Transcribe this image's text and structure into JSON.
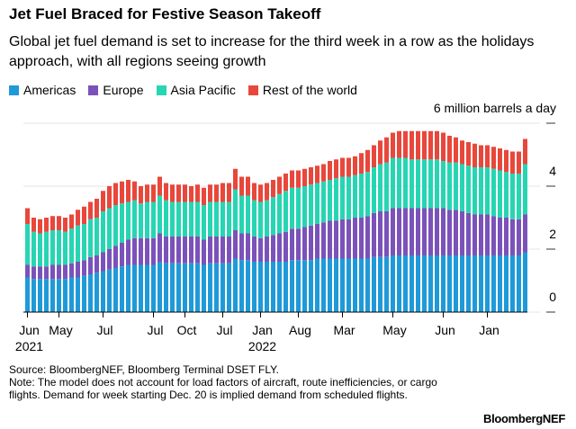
{
  "chart_data": {
    "type": "stacked_bar",
    "title": "Jet Fuel Braced for Festive Season Takeoff",
    "subtitle": "Global jet fuel demand is set to increase for the third week in a row as the holidays approach, with all regions seeing growth",
    "source": "Source: BloombergNEF, Bloomberg Terminal DSET FLY.",
    "note": "Note: The model does not account for load factors of aircraft, route inefficiencies, or cargo flights. Demand for week starting Dec. 20 is implied demand from scheduled flights.",
    "logo": "BloombergNEF",
    "categories": [
      "Jun",
      null,
      null,
      null,
      null,
      "May",
      null,
      null,
      null,
      null,
      null,
      null,
      "Jul",
      null,
      null,
      null,
      null,
      null,
      null,
      null,
      "Jul",
      null,
      null,
      null,
      null,
      "Oct",
      null,
      null,
      null,
      null,
      null,
      "Jul",
      null,
      null,
      null,
      null,
      null,
      "Jan",
      null,
      null,
      null,
      null,
      null,
      "Aug",
      null,
      null,
      null,
      null,
      null,
      null,
      "Mar",
      null,
      null,
      null,
      null,
      null,
      null,
      null,
      "May",
      null,
      null,
      null,
      null,
      null,
      null,
      null,
      "Jun",
      null,
      null,
      null,
      null,
      null,
      null,
      "Jan",
      null,
      null,
      null,
      null,
      null,
      null
    ],
    "years": [
      "2021",
      null,
      null,
      null,
      null,
      null,
      null,
      null,
      null,
      null,
      null,
      null,
      null,
      null,
      null,
      null,
      null,
      null,
      null,
      null,
      null,
      null,
      null,
      null,
      null,
      null,
      null,
      null,
      null,
      null,
      null,
      null,
      null,
      null,
      null,
      null,
      null,
      "2022",
      null,
      null,
      null,
      null,
      null,
      null,
      null,
      null,
      null,
      null,
      null,
      null,
      null,
      null,
      null,
      null,
      null,
      null,
      null,
      null,
      null,
      null,
      null,
      null,
      null,
      null,
      null,
      null,
      null,
      null,
      null,
      null,
      null,
      null,
      null,
      null,
      null,
      null,
      null,
      null,
      null,
      null
    ],
    "series": [
      {
        "name": "Americas",
        "color": "#1f9ad8",
        "values": [
          1.1,
          1.05,
          1.05,
          1.05,
          1.05,
          1.05,
          1.05,
          1.1,
          1.1,
          1.15,
          1.2,
          1.25,
          1.3,
          1.35,
          1.4,
          1.45,
          1.5,
          1.5,
          1.5,
          1.5,
          1.5,
          1.6,
          1.55,
          1.55,
          1.55,
          1.55,
          1.55,
          1.55,
          1.5,
          1.55,
          1.55,
          1.55,
          1.55,
          1.7,
          1.65,
          1.65,
          1.6,
          1.6,
          1.6,
          1.6,
          1.6,
          1.6,
          1.65,
          1.65,
          1.65,
          1.65,
          1.7,
          1.7,
          1.7,
          1.7,
          1.7,
          1.7,
          1.7,
          1.7,
          1.7,
          1.75,
          1.75,
          1.75,
          1.8,
          1.8,
          1.8,
          1.8,
          1.8,
          1.8,
          1.8,
          1.8,
          1.8,
          1.8,
          1.8,
          1.8,
          1.8,
          1.8,
          1.8,
          1.8,
          1.8,
          1.8,
          1.8,
          1.8,
          1.8,
          1.9
        ]
      },
      {
        "name": "Europe",
        "color": "#7b52b9",
        "values": [
          0.4,
          0.4,
          0.4,
          0.4,
          0.45,
          0.45,
          0.45,
          0.45,
          0.5,
          0.5,
          0.55,
          0.55,
          0.6,
          0.65,
          0.7,
          0.75,
          0.8,
          0.85,
          0.85,
          0.85,
          0.85,
          0.9,
          0.85,
          0.85,
          0.85,
          0.85,
          0.85,
          0.85,
          0.8,
          0.85,
          0.85,
          0.85,
          0.85,
          0.9,
          0.85,
          0.85,
          0.8,
          0.75,
          0.8,
          0.85,
          0.9,
          0.95,
          1.0,
          1.0,
          1.05,
          1.1,
          1.1,
          1.15,
          1.2,
          1.2,
          1.25,
          1.25,
          1.3,
          1.3,
          1.35,
          1.4,
          1.45,
          1.45,
          1.5,
          1.5,
          1.5,
          1.5,
          1.5,
          1.5,
          1.5,
          1.5,
          1.5,
          1.45,
          1.45,
          1.4,
          1.35,
          1.3,
          1.3,
          1.3,
          1.25,
          1.2,
          1.2,
          1.15,
          1.15,
          1.2
        ]
      },
      {
        "name": "Asia Pacific",
        "color": "#27d5b3",
        "values": [
          1.3,
          1.1,
          1.05,
          1.1,
          1.1,
          1.1,
          1.05,
          1.1,
          1.15,
          1.15,
          1.2,
          1.2,
          1.3,
          1.3,
          1.3,
          1.25,
          1.2,
          1.2,
          1.1,
          1.15,
          1.15,
          1.2,
          1.15,
          1.1,
          1.1,
          1.1,
          1.1,
          1.1,
          1.1,
          1.1,
          1.1,
          1.1,
          1.1,
          1.3,
          1.2,
          1.2,
          1.15,
          1.15,
          1.15,
          1.2,
          1.25,
          1.3,
          1.3,
          1.3,
          1.3,
          1.3,
          1.3,
          1.3,
          1.3,
          1.35,
          1.35,
          1.35,
          1.35,
          1.4,
          1.4,
          1.45,
          1.5,
          1.55,
          1.6,
          1.6,
          1.6,
          1.55,
          1.55,
          1.55,
          1.55,
          1.55,
          1.5,
          1.5,
          1.5,
          1.5,
          1.5,
          1.5,
          1.5,
          1.5,
          1.5,
          1.5,
          1.45,
          1.45,
          1.45,
          1.6
        ]
      },
      {
        "name": "Rest of the world",
        "color": "#e8473b",
        "values": [
          0.5,
          0.45,
          0.45,
          0.45,
          0.45,
          0.45,
          0.45,
          0.45,
          0.5,
          0.55,
          0.55,
          0.6,
          0.65,
          0.7,
          0.7,
          0.7,
          0.7,
          0.6,
          0.55,
          0.55,
          0.55,
          0.6,
          0.55,
          0.55,
          0.55,
          0.55,
          0.5,
          0.55,
          0.55,
          0.55,
          0.55,
          0.6,
          0.6,
          0.65,
          0.6,
          0.6,
          0.55,
          0.55,
          0.55,
          0.55,
          0.55,
          0.55,
          0.55,
          0.55,
          0.55,
          0.55,
          0.55,
          0.55,
          0.6,
          0.6,
          0.6,
          0.6,
          0.6,
          0.65,
          0.7,
          0.7,
          0.75,
          0.8,
          0.8,
          0.85,
          0.85,
          0.9,
          0.9,
          0.9,
          0.9,
          0.9,
          0.9,
          0.85,
          0.8,
          0.75,
          0.75,
          0.75,
          0.7,
          0.7,
          0.7,
          0.7,
          0.7,
          0.7,
          0.7,
          0.8
        ]
      }
    ],
    "ylim": [
      0,
      6.3
    ],
    "yticks": [
      0,
      2,
      4,
      {
        "value": 6,
        "label": "6 million barrels a day"
      }
    ],
    "grid": true
  }
}
